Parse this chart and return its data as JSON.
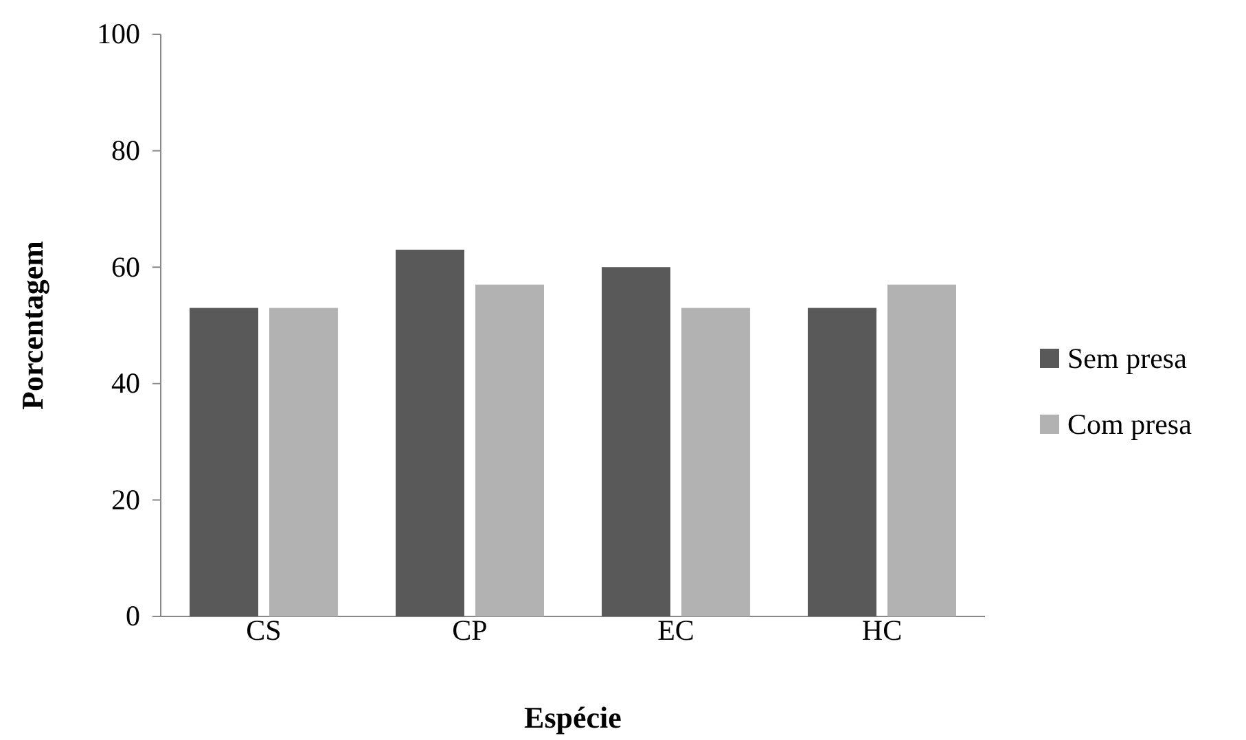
{
  "chart_data": {
    "type": "bar",
    "xlabel": "Espécie",
    "ylabel": "Porcentagem",
    "categories": [
      "CS",
      "CP",
      "EC",
      "HC"
    ],
    "series": [
      {
        "name": "Sem presa",
        "color": "#595959",
        "values": [
          53,
          63,
          60,
          53
        ]
      },
      {
        "name": "Com presa",
        "color": "#b2b2b2",
        "values": [
          53,
          57,
          53,
          57
        ]
      }
    ],
    "ylim": [
      0,
      100
    ],
    "yticks": [
      0,
      20,
      40,
      60,
      80,
      100
    ],
    "grid": false,
    "legend": "right"
  }
}
